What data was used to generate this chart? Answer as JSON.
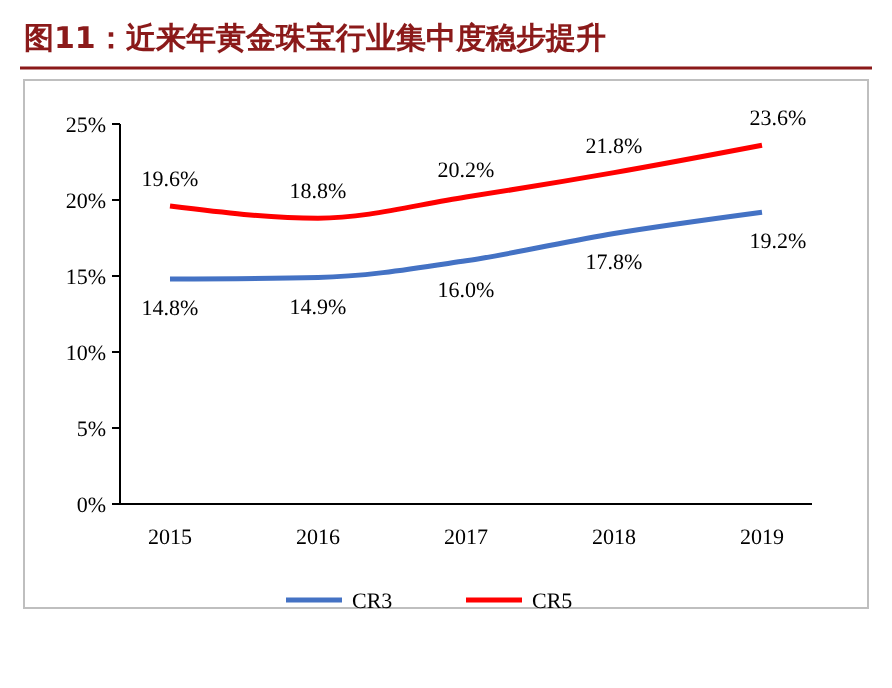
{
  "chart_data": {
    "type": "line",
    "title": "图11：近来年黄金珠宝行业集中度稳步提升",
    "categories": [
      "2015",
      "2016",
      "2017",
      "2018",
      "2019"
    ],
    "series": [
      {
        "name": "CR3",
        "color": "#4472c4",
        "values": [
          14.8,
          14.9,
          16.0,
          17.8,
          19.2
        ],
        "value_labels": [
          "14.8%",
          "14.9%",
          "16.0%",
          "17.8%",
          "19.2%"
        ]
      },
      {
        "name": "CR5",
        "color": "#ff0000",
        "values": [
          19.6,
          18.8,
          20.2,
          21.8,
          23.6
        ],
        "value_labels": [
          "19.6%",
          "18.8%",
          "20.2%",
          "21.8%",
          "23.6%"
        ]
      }
    ],
    "ylim": [
      0,
      25
    ],
    "yticks": [
      {
        "value": 0,
        "label": "0%"
      },
      {
        "value": 5,
        "label": "5%"
      },
      {
        "value": 10,
        "label": "10%"
      },
      {
        "value": 15,
        "label": "15%"
      },
      {
        "value": 20,
        "label": "20%"
      },
      {
        "value": 25,
        "label": "25%"
      }
    ],
    "legend": "bottom",
    "marker": "none",
    "line_style": "solid"
  }
}
